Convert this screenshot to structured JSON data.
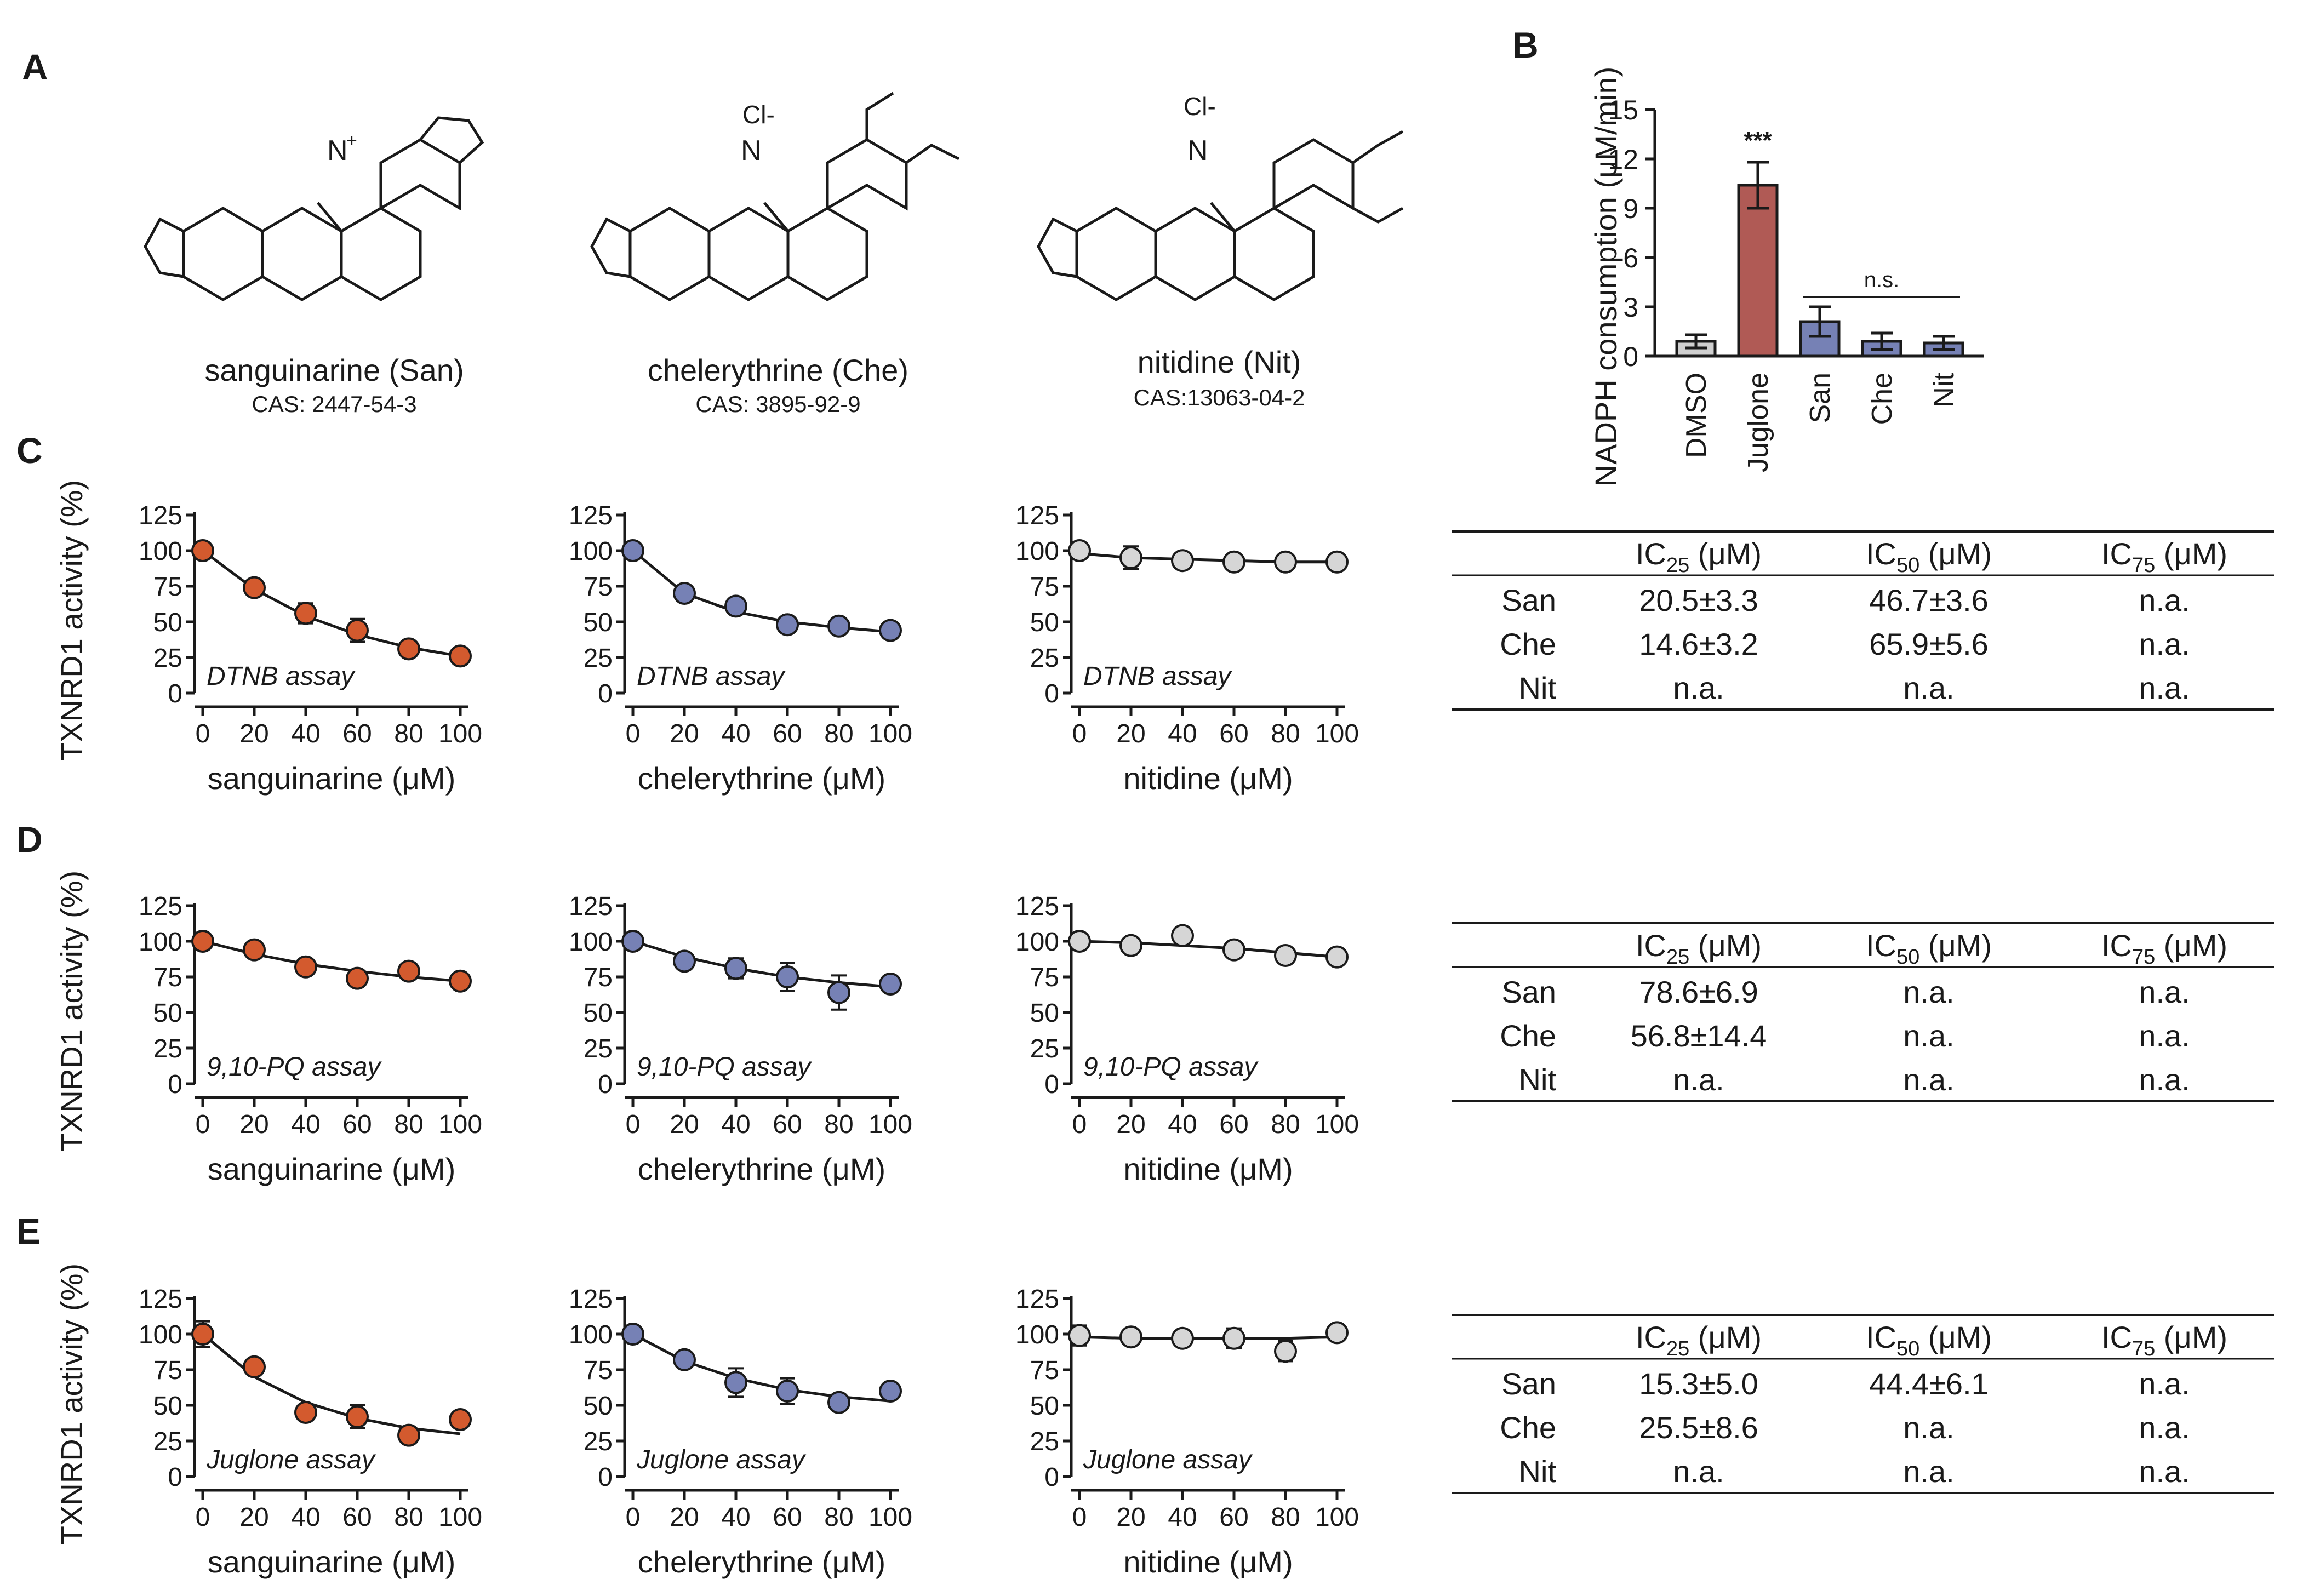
{
  "panel_labels": {
    "a": "A",
    "b": "B",
    "c": "C",
    "d": "D",
    "e": "E"
  },
  "compounds": [
    {
      "name": "sanguinarine (San)",
      "cas": "CAS: 2447-54-3",
      "counter_ion": ""
    },
    {
      "name": "chelerythrine (Che)",
      "cas": "CAS: 3895-92-9",
      "counter_ion": "Cl-"
    },
    {
      "name": "nitidine (Nit)",
      "cas": "CAS:13063-04-2",
      "counter_ion": "Cl-"
    }
  ],
  "colors": {
    "san": "#d35a2e",
    "che": "#7681b5",
    "nit": "#d6d6d6",
    "dmso": "#cfcfcf",
    "juglone": "#b05a55",
    "line": "#1a1a1a"
  },
  "chart_data": [
    {
      "id": "B",
      "type": "bar",
      "title": "",
      "ylabel": "NADPH consumption (μM/min)",
      "categories": [
        "DMSO",
        "Juglone",
        "San",
        "Che",
        "Nit"
      ],
      "values": [
        0.9,
        10.4,
        2.1,
        0.9,
        0.8
      ],
      "errors": [
        0.4,
        1.4,
        0.9,
        0.5,
        0.4
      ],
      "ylim": [
        0,
        15
      ],
      "yticks": [
        "0",
        "3",
        "6",
        "9",
        "12",
        "15"
      ],
      "significance": [
        {
          "label": "***",
          "category": "Juglone"
        },
        {
          "label": "n.s.",
          "from": "San",
          "to": "Nit"
        }
      ]
    },
    {
      "id": "C1",
      "type": "scatter",
      "assay": "DTNB assay",
      "xlabel": "sanguinarine  (μM)",
      "ylabel": "TXNRD1 activity (%)",
      "x": [
        0,
        20,
        40,
        60,
        80,
        100
      ],
      "values": [
        100,
        74,
        56,
        44,
        31,
        26
      ],
      "errors": [
        3,
        3,
        7,
        8,
        3,
        3
      ],
      "fit": [
        100,
        73,
        54,
        41,
        32,
        26
      ],
      "ylim": [
        0,
        125
      ],
      "yticks": [
        "0",
        "25",
        "50",
        "75",
        "100",
        "125"
      ],
      "xticks": [
        "0",
        "20",
        "40",
        "60",
        "80",
        "100"
      ],
      "series_color": "san"
    },
    {
      "id": "C2",
      "type": "scatter",
      "assay": "DTNB assay",
      "xlabel": "chelerythrine (μM)",
      "ylabel": "",
      "x": [
        0,
        20,
        40,
        60,
        80,
        100
      ],
      "values": [
        100,
        70,
        61,
        48,
        47,
        44
      ],
      "errors": [
        3,
        3,
        4,
        3,
        3,
        3
      ],
      "fit": [
        100,
        70,
        57,
        50,
        46,
        43
      ],
      "ylim": [
        0,
        125
      ],
      "yticks": [
        "0",
        "25",
        "50",
        "75",
        "100",
        "125"
      ],
      "xticks": [
        "0",
        "20",
        "40",
        "60",
        "80",
        "100"
      ],
      "series_color": "che"
    },
    {
      "id": "C3",
      "type": "scatter",
      "assay": "DTNB assay",
      "xlabel": "nitidine (μM)",
      "ylabel": "",
      "x": [
        0,
        20,
        40,
        60,
        80,
        100
      ],
      "values": [
        100,
        95,
        93,
        92,
        92,
        92
      ],
      "errors": [
        4,
        8,
        3,
        3,
        3,
        3
      ],
      "fit": [
        98,
        95,
        94,
        93,
        92,
        92
      ],
      "ylim": [
        0,
        125
      ],
      "yticks": [
        "0",
        "25",
        "50",
        "75",
        "100",
        "125"
      ],
      "xticks": [
        "0",
        "20",
        "40",
        "60",
        "80",
        "100"
      ],
      "series_color": "nit"
    },
    {
      "id": "D1",
      "type": "scatter",
      "assay": "9,10-PQ assay",
      "xlabel": "sanguinarine  (μM)",
      "ylabel": "TXNRD1 activity (%)",
      "x": [
        0,
        20,
        40,
        60,
        80,
        100
      ],
      "values": [
        100,
        94,
        82,
        74,
        79,
        72
      ],
      "errors": [
        3,
        3,
        3,
        3,
        3,
        3
      ],
      "fit": [
        100,
        91,
        84,
        79,
        75,
        72
      ],
      "ylim": [
        0,
        125
      ],
      "yticks": [
        "0",
        "25",
        "50",
        "75",
        "100",
        "125"
      ],
      "xticks": [
        "0",
        "20",
        "40",
        "60",
        "80",
        "100"
      ],
      "series_color": "san"
    },
    {
      "id": "D2",
      "type": "scatter",
      "assay": "9,10-PQ assay",
      "xlabel": "chelerythrine (μM)",
      "ylabel": "",
      "x": [
        0,
        20,
        40,
        60,
        80,
        100
      ],
      "values": [
        100,
        86,
        81,
        75,
        64,
        70
      ],
      "errors": [
        3,
        3,
        7,
        10,
        12,
        4
      ],
      "fit": [
        100,
        89,
        81,
        75,
        71,
        68
      ],
      "ylim": [
        0,
        125
      ],
      "yticks": [
        "0",
        "25",
        "50",
        "75",
        "100",
        "125"
      ],
      "xticks": [
        "0",
        "20",
        "40",
        "60",
        "80",
        "100"
      ],
      "series_color": "che"
    },
    {
      "id": "D3",
      "type": "scatter",
      "assay": "9,10-PQ assay",
      "xlabel": "nitidine (μM)",
      "ylabel": "",
      "x": [
        0,
        20,
        40,
        60,
        80,
        100
      ],
      "values": [
        100,
        97,
        104,
        94,
        90,
        89
      ],
      "errors": [
        3,
        3,
        4,
        3,
        3,
        3
      ],
      "fit": [
        100,
        99,
        97,
        95,
        92,
        89
      ],
      "ylim": [
        0,
        125
      ],
      "yticks": [
        "0",
        "25",
        "50",
        "75",
        "100",
        "125"
      ],
      "xticks": [
        "0",
        "20",
        "40",
        "60",
        "80",
        "100"
      ],
      "series_color": "nit"
    },
    {
      "id": "E1",
      "type": "scatter",
      "assay": "Juglone assay",
      "xlabel": "sanguinarine  (μM)",
      "ylabel": "TXNRD1 activity (%)",
      "x": [
        0,
        20,
        40,
        60,
        80,
        100
      ],
      "values": [
        100,
        77,
        45,
        42,
        29,
        40
      ],
      "errors": [
        9,
        3,
        3,
        8,
        3,
        3
      ],
      "fit": [
        100,
        70,
        52,
        41,
        34,
        30
      ],
      "ylim": [
        0,
        125
      ],
      "yticks": [
        "0",
        "25",
        "50",
        "75",
        "100",
        "125"
      ],
      "xticks": [
        "0",
        "20",
        "40",
        "60",
        "80",
        "100"
      ],
      "series_color": "san"
    },
    {
      "id": "E2",
      "type": "scatter",
      "assay": "Juglone assay",
      "xlabel": "chelerythrine (μM)",
      "ylabel": "",
      "x": [
        0,
        20,
        40,
        60,
        80,
        100
      ],
      "values": [
        100,
        82,
        66,
        60,
        52,
        60
      ],
      "errors": [
        3,
        3,
        10,
        9,
        3,
        3
      ],
      "fit": [
        100,
        81,
        69,
        61,
        56,
        53
      ],
      "ylim": [
        0,
        125
      ],
      "yticks": [
        "0",
        "25",
        "50",
        "75",
        "100",
        "125"
      ],
      "xticks": [
        "0",
        "20",
        "40",
        "60",
        "80",
        "100"
      ],
      "series_color": "che"
    },
    {
      "id": "E3",
      "type": "scatter",
      "assay": "Juglone assay",
      "xlabel": "nitidine (μM)",
      "ylabel": "",
      "x": [
        0,
        20,
        40,
        60,
        80,
        100
      ],
      "values": [
        99,
        98,
        97,
        97,
        88,
        101
      ],
      "errors": [
        7,
        3,
        3,
        7,
        7,
        3
      ],
      "fit": [
        98,
        97,
        97,
        97,
        97,
        98
      ],
      "ylim": [
        0,
        125
      ],
      "yticks": [
        "0",
        "25",
        "50",
        "75",
        "100",
        "125"
      ],
      "xticks": [
        "0",
        "20",
        "40",
        "60",
        "80",
        "100"
      ],
      "series_color": "nit"
    },
    {
      "id": "tables",
      "type": "table",
      "columns": [
        {
          "base": "IC",
          "sub": "25",
          "unit": " (μM)"
        },
        {
          "base": "IC",
          "sub": "50",
          "unit": " (μM)"
        },
        {
          "base": "IC",
          "sub": "75",
          "unit": " (μM)"
        }
      ],
      "row_labels": [
        "San",
        "Che",
        "Nit"
      ],
      "tables": [
        {
          "panel": "C",
          "rows": [
            [
              "20.5±3.3",
              "46.7±3.6",
              "n.a."
            ],
            [
              "14.6±3.2",
              "65.9±5.6",
              "n.a."
            ],
            [
              "n.a.",
              "n.a.",
              "n.a."
            ]
          ]
        },
        {
          "panel": "D",
          "rows": [
            [
              "78.6±6.9",
              "n.a.",
              "n.a."
            ],
            [
              "56.8±14.4",
              "n.a.",
              "n.a."
            ],
            [
              "n.a.",
              "n.a.",
              "n.a."
            ]
          ]
        },
        {
          "panel": "E",
          "rows": [
            [
              "15.3±5.0",
              "44.4±6.1",
              "n.a."
            ],
            [
              "25.5±8.6",
              "n.a.",
              "n.a."
            ],
            [
              "n.a.",
              "n.a.",
              "n.a."
            ]
          ]
        }
      ]
    }
  ]
}
